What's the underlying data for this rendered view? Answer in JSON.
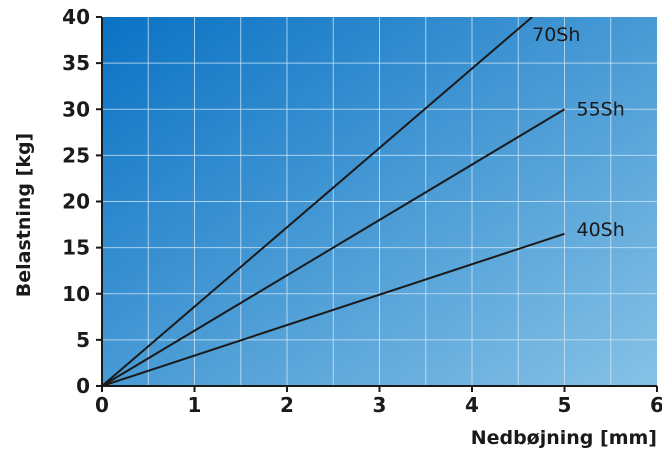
{
  "chart_data": {
    "type": "line",
    "xlabel": "Nedbøjning [mm]",
    "ylabel": "Belastning [kg]",
    "xlim": [
      0,
      6
    ],
    "ylim": [
      0,
      40
    ],
    "x_ticks": [
      "0",
      "1",
      "2",
      "3",
      "4",
      "5",
      "6"
    ],
    "y_ticks": [
      "0",
      "5",
      "10",
      "15",
      "20",
      "25",
      "30",
      "35",
      "40"
    ],
    "grid": true,
    "series": [
      {
        "name": "70Sh",
        "x": [
          0,
          4.65
        ],
        "y": [
          0,
          40
        ]
      },
      {
        "name": "55Sh",
        "x": [
          0,
          5.0
        ],
        "y": [
          0,
          30
        ]
      },
      {
        "name": "40Sh",
        "x": [
          0,
          5.0
        ],
        "y": [
          0,
          16.5
        ]
      }
    ]
  },
  "colors": {
    "background_start": "#0a72c4",
    "background_end": "#86c2e6",
    "grid": "#d4e8f6",
    "line": "#1a1a1a"
  }
}
